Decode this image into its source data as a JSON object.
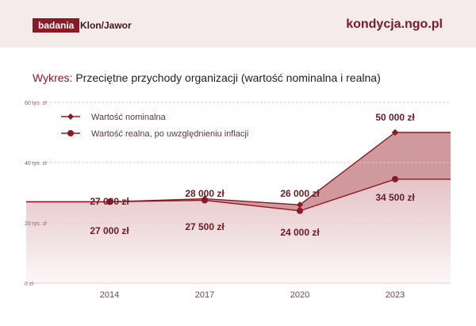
{
  "header": {
    "badge": "badania",
    "org": "Klon/Jawor",
    "site": "kondycja.ngo.pl"
  },
  "title_prefix": "Wykres:",
  "title": "Przeciętne przychody organizacji (wartość nominalna i realna)",
  "colors": {
    "accent": "#8b1a24",
    "header_bg": "#f6ebeb",
    "band_fill": "#c7878d",
    "real_fill": "#e3c0c3"
  },
  "chart_data": {
    "type": "area",
    "categories": [
      "2014",
      "2017",
      "2020",
      "2023"
    ],
    "ylim": [
      0,
      60000
    ],
    "yticks": [
      {
        "value": 0,
        "label": "0 zł"
      },
      {
        "value": 20000,
        "label": "20 tys. zł"
      },
      {
        "value": 40000,
        "label": "40 tys. zł"
      },
      {
        "value": 60000,
        "label": "60 tys. zł"
      }
    ],
    "series": [
      {
        "name": "Wartość nominalna",
        "values": [
          27000,
          28000,
          26000,
          50000
        ],
        "labels": [
          "27 000 zł",
          "28 000 zł",
          "26 000 zł",
          "50 000 zł"
        ],
        "marker": "diamond"
      },
      {
        "name": "Wartość realna, po uwzględnieniu inflacji",
        "values": [
          27000,
          27500,
          24000,
          34500
        ],
        "labels": [
          "27 000 zł",
          "27 500 zł",
          "24 000 zł",
          "34 500 zł"
        ],
        "marker": "circle"
      }
    ],
    "legend_position": "top-left",
    "grid": true
  }
}
